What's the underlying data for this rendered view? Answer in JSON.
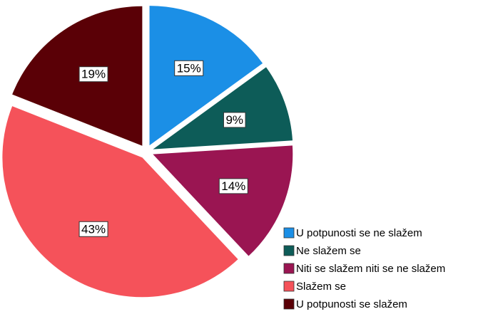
{
  "chart_data": {
    "type": "pie",
    "categories": [
      "U potpunosti se ne slažem",
      "Ne slažem se",
      "Niti se slažem niti se ne slažem",
      "Slažem se",
      "U potpunosti se slažem"
    ],
    "values": [
      15,
      9,
      14,
      43,
      19
    ],
    "value_labels": [
      "15%",
      "9%",
      "14%",
      "43%",
      "19%"
    ],
    "colors": [
      "#1b8fe6",
      "#0d5c58",
      "#9a1552",
      "#f5525a",
      "#5a0006"
    ],
    "legend": "lower right"
  }
}
